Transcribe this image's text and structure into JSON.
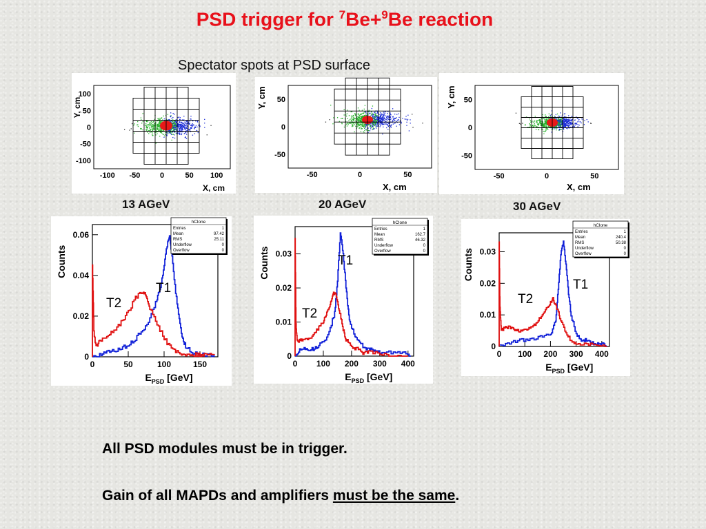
{
  "title": {
    "main": "PSD trigger for ",
    "sup1": "7",
    "be1": "Be+",
    "sup2": "9",
    "rest": "Be reaction"
  },
  "subtitle": "Spectator spots at PSD surface",
  "spots": [
    {
      "xlabel": "X, cm",
      "ylabel": "Y, cm",
      "xticks": [
        "-100",
        "-50",
        "0",
        "50",
        "100"
      ],
      "yticks": [
        "100",
        "50",
        "0",
        "-50",
        "-100"
      ]
    },
    {
      "xlabel": "X, cm",
      "ylabel": "Y, cm",
      "xticks": [
        "-50",
        "0",
        "50"
      ],
      "yticks": [
        "50",
        "0",
        "-50"
      ]
    },
    {
      "xlabel": "X, cm",
      "ylabel": "Y, cm",
      "xticks": [
        "-50",
        "0",
        "50"
      ],
      "yticks": [
        "50",
        "0",
        "-50"
      ]
    }
  ],
  "energies": [
    "13 AGeV",
    "20 AGeV",
    "30 AGeV"
  ],
  "colors": {
    "title": "#e8111b",
    "t1": "#1020d8",
    "t2": "#e01010"
  },
  "chart_data": [
    {
      "type": "line",
      "xlabel": "E",
      "xlabel_sub": "PSD",
      "xlabel_unit": "[GeV]",
      "ylabel": "Counts",
      "xlim": [
        0,
        175
      ],
      "ylim": [
        0,
        0.065
      ],
      "xticks": [
        "0",
        "50",
        "100",
        "150"
      ],
      "yticks": [
        "0",
        "0.02",
        "0.04",
        "0.06"
      ],
      "stats": {
        "title": "hClone",
        "rows": [
          [
            "Entries",
            "1"
          ],
          [
            "Mean",
            "97.42"
          ],
          [
            "RMS",
            "25.11"
          ],
          [
            "Underflow",
            "0"
          ],
          [
            "Overflow",
            "0"
          ]
        ]
      },
      "labels": {
        "t1": "T1",
        "t2": "T2"
      },
      "series": [
        {
          "name": "T1",
          "x": [
            0,
            10,
            20,
            30,
            40,
            50,
            60,
            70,
            80,
            90,
            95,
            100,
            105,
            108,
            110,
            115,
            120,
            125,
            130,
            140,
            150,
            160,
            170
          ],
          "values": [
            0,
            0.001,
            0.002,
            0.003,
            0.004,
            0.006,
            0.009,
            0.013,
            0.019,
            0.028,
            0.035,
            0.045,
            0.057,
            0.06,
            0.052,
            0.035,
            0.02,
            0.01,
            0.005,
            0.002,
            0.001,
            0.001,
            0
          ]
        },
        {
          "name": "T2",
          "x": [
            0,
            2,
            5,
            10,
            20,
            30,
            40,
            50,
            60,
            70,
            75,
            80,
            90,
            100,
            110,
            120,
            130,
            140,
            150,
            160,
            170
          ],
          "values": [
            0.046,
            0.012,
            0.005,
            0.008,
            0.01,
            0.013,
            0.017,
            0.022,
            0.029,
            0.032,
            0.03,
            0.024,
            0.016,
            0.009,
            0.004,
            0.002,
            0.001,
            0.001,
            0.001,
            0.001,
            0.001
          ]
        }
      ]
    },
    {
      "type": "line",
      "xlabel": "E",
      "xlabel_sub": "PSD",
      "xlabel_unit": "[GeV]",
      "ylabel": "Counts",
      "xlim": [
        0,
        420
      ],
      "ylim": [
        0,
        0.038
      ],
      "xticks": [
        "0",
        "100",
        "200",
        "300",
        "400"
      ],
      "yticks": [
        "0",
        "0.01",
        "0.02",
        "0.03"
      ],
      "stats": {
        "title": "hClone",
        "rows": [
          [
            "Entries",
            "1"
          ],
          [
            "Mean",
            "162.7"
          ],
          [
            "RMS",
            "46.32"
          ],
          [
            "Underflow",
            "0"
          ],
          [
            "Overflow",
            "0"
          ]
        ]
      },
      "labels": {
        "t1": "T1",
        "t2": "T2"
      },
      "series": [
        {
          "name": "T1",
          "x": [
            0,
            20,
            40,
            60,
            80,
            100,
            120,
            140,
            150,
            160,
            170,
            180,
            190,
            200,
            220,
            240,
            260,
            280,
            300,
            340,
            380,
            410
          ],
          "values": [
            0,
            0.002,
            0.002,
            0.002,
            0.003,
            0.004,
            0.007,
            0.013,
            0.022,
            0.036,
            0.03,
            0.02,
            0.012,
            0.008,
            0.005,
            0.003,
            0.002,
            0.002,
            0.001,
            0.001,
            0.001,
            0
          ]
        },
        {
          "name": "T2",
          "x": [
            0,
            3,
            8,
            20,
            40,
            60,
            80,
            100,
            110,
            120,
            130,
            140,
            150,
            160,
            170,
            180,
            200,
            220,
            240,
            260,
            300,
            340,
            400
          ],
          "values": [
            0.035,
            0.009,
            0.004,
            0.005,
            0.005,
            0.006,
            0.008,
            0.01,
            0.012,
            0.014,
            0.017,
            0.019,
            0.016,
            0.012,
            0.008,
            0.005,
            0.003,
            0.002,
            0.001,
            0.001,
            0.001,
            0,
            0
          ]
        }
      ]
    },
    {
      "type": "line",
      "xlabel": "E",
      "xlabel_sub": "PSD",
      "xlabel_unit": "[GeV]",
      "ylabel": "Counts",
      "xlim": [
        0,
        430
      ],
      "ylim": [
        0,
        0.036
      ],
      "xticks": [
        "0",
        "100",
        "200",
        "300",
        "400"
      ],
      "yticks": [
        "0",
        "0.01",
        "0.02",
        "0.03"
      ],
      "stats": {
        "title": "hClone",
        "rows": [
          [
            "Entries",
            "1"
          ],
          [
            "Mean",
            "240.4"
          ],
          [
            "RMS",
            "50.38"
          ],
          [
            "Underflow",
            "0"
          ],
          [
            "Overflow",
            "0"
          ]
        ]
      },
      "labels": {
        "t1": "T1",
        "t2": "T2"
      },
      "series": [
        {
          "name": "T1",
          "x": [
            0,
            40,
            80,
            120,
            160,
            200,
            220,
            230,
            240,
            250,
            260,
            270,
            280,
            300,
            320,
            340,
            360,
            380,
            400,
            420
          ],
          "values": [
            0,
            0.001,
            0.002,
            0.002,
            0.003,
            0.004,
            0.008,
            0.018,
            0.029,
            0.033,
            0.026,
            0.017,
            0.01,
            0.004,
            0.002,
            0.002,
            0.001,
            0.001,
            0.001,
            0
          ]
        },
        {
          "name": "T2",
          "x": [
            0,
            3,
            8,
            20,
            40,
            60,
            80,
            100,
            120,
            140,
            160,
            180,
            200,
            210,
            220,
            230,
            240,
            260,
            280,
            300,
            340,
            380,
            420
          ],
          "values": [
            0.033,
            0.012,
            0.005,
            0.006,
            0.006,
            0.005,
            0.005,
            0.005,
            0.006,
            0.007,
            0.009,
            0.012,
            0.014,
            0.015,
            0.013,
            0.011,
            0.008,
            0.004,
            0.002,
            0.001,
            0.001,
            0,
            0
          ]
        }
      ]
    }
  ],
  "bullets": {
    "line1": "All PSD modules must be in trigger.",
    "line2_pre": "Gain of all MAPDs and amplifiers ",
    "line2_u": "must be the same",
    "line2_post": "."
  }
}
